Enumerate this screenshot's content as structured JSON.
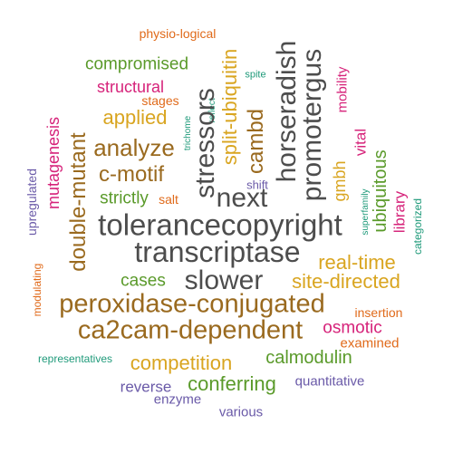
{
  "colors": {
    "gray": "#4d4d4d",
    "brown": "#9a6a1f",
    "gold": "#d9a520",
    "green": "#5a9a2a",
    "magenta": "#d6237a",
    "purple": "#6a5aa8",
    "orange": "#e06a1a",
    "teal": "#1f9a7a"
  },
  "words": [
    {
      "text": "physio-logical",
      "color": "#e06a1a"
    },
    {
      "text": "compromised",
      "color": "#5a9a2a"
    },
    {
      "text": "structural",
      "color": "#d6237a"
    },
    {
      "text": "stages",
      "color": "#e06a1a"
    },
    {
      "text": "applied",
      "color": "#d9a520"
    },
    {
      "text": "mutagenesis",
      "color": "#d6237a"
    },
    {
      "text": "double-mutant",
      "color": "#9a6a1f"
    },
    {
      "text": "analyze",
      "color": "#9a6a1f"
    },
    {
      "text": "c-motif",
      "color": "#9a6a1f"
    },
    {
      "text": "strictly",
      "color": "#5a9a2a"
    },
    {
      "text": "salt",
      "color": "#e06a1a"
    },
    {
      "text": "upregulated",
      "color": "#6a5aa8"
    },
    {
      "text": "trichome",
      "color": "#1f9a7a"
    },
    {
      "text": "reflect",
      "color": "#1f9a7a"
    },
    {
      "text": "spite",
      "color": "#1f9a7a"
    },
    {
      "text": "stressors",
      "color": "#4d4d4d"
    },
    {
      "text": "split-ubiquitin",
      "color": "#d9a520"
    },
    {
      "text": "cambd",
      "color": "#9a6a1f"
    },
    {
      "text": "horseradish",
      "color": "#4d4d4d"
    },
    {
      "text": "promotergus",
      "color": "#4d4d4d"
    },
    {
      "text": "mobility",
      "color": "#d6237a"
    },
    {
      "text": "next",
      "color": "#4d4d4d"
    },
    {
      "text": "shift",
      "color": "#6a5aa8"
    },
    {
      "text": "gmbh",
      "color": "#d9a520"
    },
    {
      "text": "vital",
      "color": "#d6237a"
    },
    {
      "text": "ubiquitous",
      "color": "#5a9a2a"
    },
    {
      "text": "superfamily",
      "color": "#1f9a7a"
    },
    {
      "text": "library",
      "color": "#d6237a"
    },
    {
      "text": "categorized",
      "color": "#1f9a7a"
    },
    {
      "text": "tolerancecopyright",
      "color": "#4d4d4d"
    },
    {
      "text": "transcriptase",
      "color": "#4d4d4d"
    },
    {
      "text": "real-time",
      "color": "#d9a520"
    },
    {
      "text": "cases",
      "color": "#5a9a2a"
    },
    {
      "text": "slower",
      "color": "#4d4d4d"
    },
    {
      "text": "site-directed",
      "color": "#d9a520"
    },
    {
      "text": "modulating",
      "color": "#e06a1a"
    },
    {
      "text": "peroxidase-conjugated",
      "color": "#9a6a1f"
    },
    {
      "text": "insertion",
      "color": "#e06a1a"
    },
    {
      "text": "ca2cam-dependent",
      "color": "#9a6a1f"
    },
    {
      "text": "osmotic",
      "color": "#d6237a"
    },
    {
      "text": "examined",
      "color": "#e06a1a"
    },
    {
      "text": "representatives",
      "color": "#1f9a7a"
    },
    {
      "text": "competition",
      "color": "#d9a520"
    },
    {
      "text": "calmodulin",
      "color": "#5a9a2a"
    },
    {
      "text": "reverse",
      "color": "#6a5aa8"
    },
    {
      "text": "conferring",
      "color": "#5a9a2a"
    },
    {
      "text": "quantitative",
      "color": "#6a5aa8"
    },
    {
      "text": "enzyme",
      "color": "#6a5aa8"
    },
    {
      "text": "various",
      "color": "#6a5aa8"
    }
  ]
}
